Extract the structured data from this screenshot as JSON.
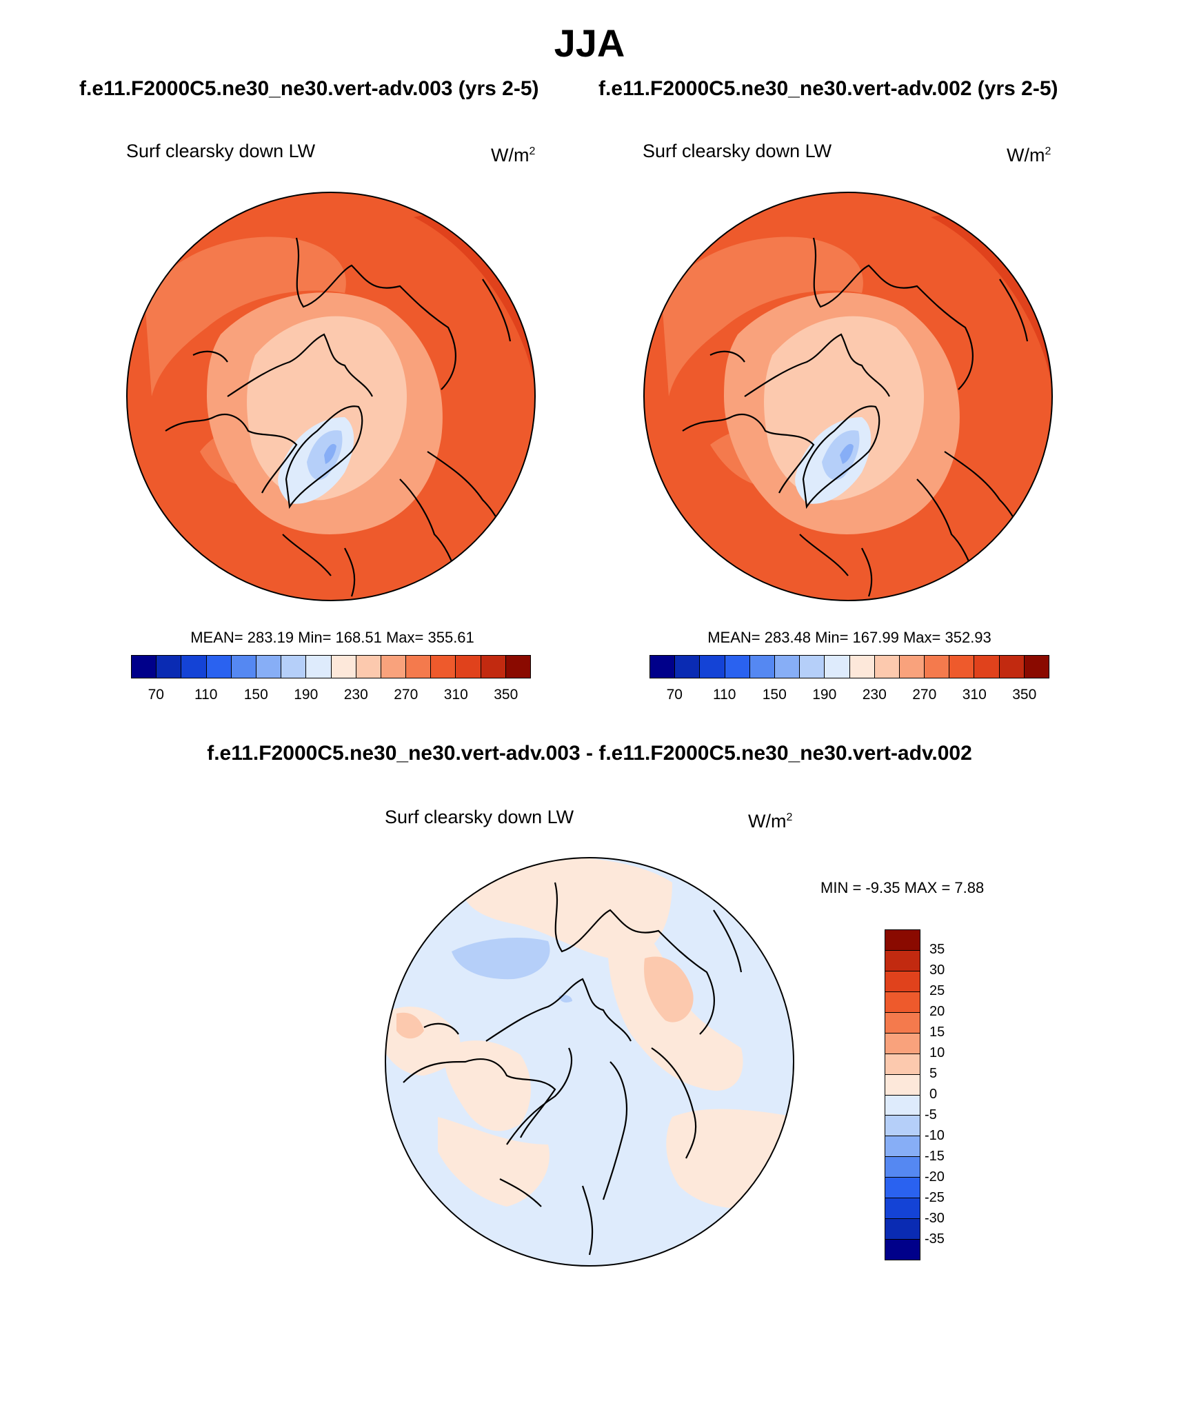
{
  "figure": {
    "season": "JJA",
    "case_a_title": "f.e11.F2000C5.ne30_ne30.vert-adv.003 (yrs 2-5)",
    "case_b_title": "f.e11.F2000C5.ne30_ne30.vert-adv.002 (yrs 2-5)",
    "diff_title": "f.e11.F2000C5.ne30_ne30.vert-adv.003 - f.e11.F2000C5.ne30_ne30.vert-adv.002"
  },
  "panels": {
    "a": {
      "variable": "Surf clearsky down LW",
      "units": "W/m",
      "units_sup": "2",
      "stats": "MEAN= 283.19  Min= 168.51  Max= 355.61"
    },
    "b": {
      "variable": "Surf clearsky down LW",
      "units": "W/m",
      "units_sup": "2",
      "stats": "MEAN= 283.48  Min= 167.99  Max= 352.93"
    },
    "diff": {
      "variable": "Surf clearsky down LW",
      "units": "W/m",
      "units_sup": "2",
      "stats": "MIN =  -9.35 MAX =   7.88"
    }
  },
  "chart_data": [
    {
      "type": "heatmap",
      "projection": "north polar stereographic",
      "title": "Surf clearsky down LW",
      "units": "W/m2",
      "mean": 283.19,
      "min": 168.51,
      "max": 355.61,
      "colorbar_ticks": [
        70,
        110,
        150,
        190,
        230,
        270,
        310,
        350
      ],
      "colorbar_colors": [
        "#00008a",
        "#0a2bb3",
        "#1443d6",
        "#2a62f0",
        "#5588f2",
        "#87aef6",
        "#b5cff9",
        "#deebfc",
        "#fde8da",
        "#fcc9ae",
        "#f9a27c",
        "#f47a4d",
        "#ee5a2c",
        "#e0421c",
        "#c22a10",
        "#8a0a00"
      ]
    },
    {
      "type": "heatmap",
      "projection": "north polar stereographic",
      "title": "Surf clearsky down LW",
      "units": "W/m2",
      "mean": 283.48,
      "min": 167.99,
      "max": 352.93,
      "colorbar_ticks": [
        70,
        110,
        150,
        190,
        230,
        270,
        310,
        350
      ],
      "colorbar_colors": [
        "#00008a",
        "#0a2bb3",
        "#1443d6",
        "#2a62f0",
        "#5588f2",
        "#87aef6",
        "#b5cff9",
        "#deebfc",
        "#fde8da",
        "#fcc9ae",
        "#f9a27c",
        "#f47a4d",
        "#ee5a2c",
        "#e0421c",
        "#c22a10",
        "#8a0a00"
      ]
    },
    {
      "type": "heatmap",
      "projection": "north polar stereographic",
      "title": "Surf clearsky down LW",
      "units": "W/m2",
      "min": -9.35,
      "max": 7.88,
      "colorbar_ticks": [
        35,
        30,
        25,
        20,
        15,
        10,
        5,
        0,
        -5,
        -10,
        -15,
        -20,
        -25,
        -30,
        -35
      ],
      "colorbar_colors": [
        "#8a0a00",
        "#c22a10",
        "#e0421c",
        "#ee5a2c",
        "#f47a4d",
        "#f9a27c",
        "#fcc9ae",
        "#fde8da",
        "#deebfc",
        "#b5cff9",
        "#87aef6",
        "#5588f2",
        "#2a62f0",
        "#1443d6",
        "#0a2bb3",
        "#00008a"
      ]
    }
  ]
}
